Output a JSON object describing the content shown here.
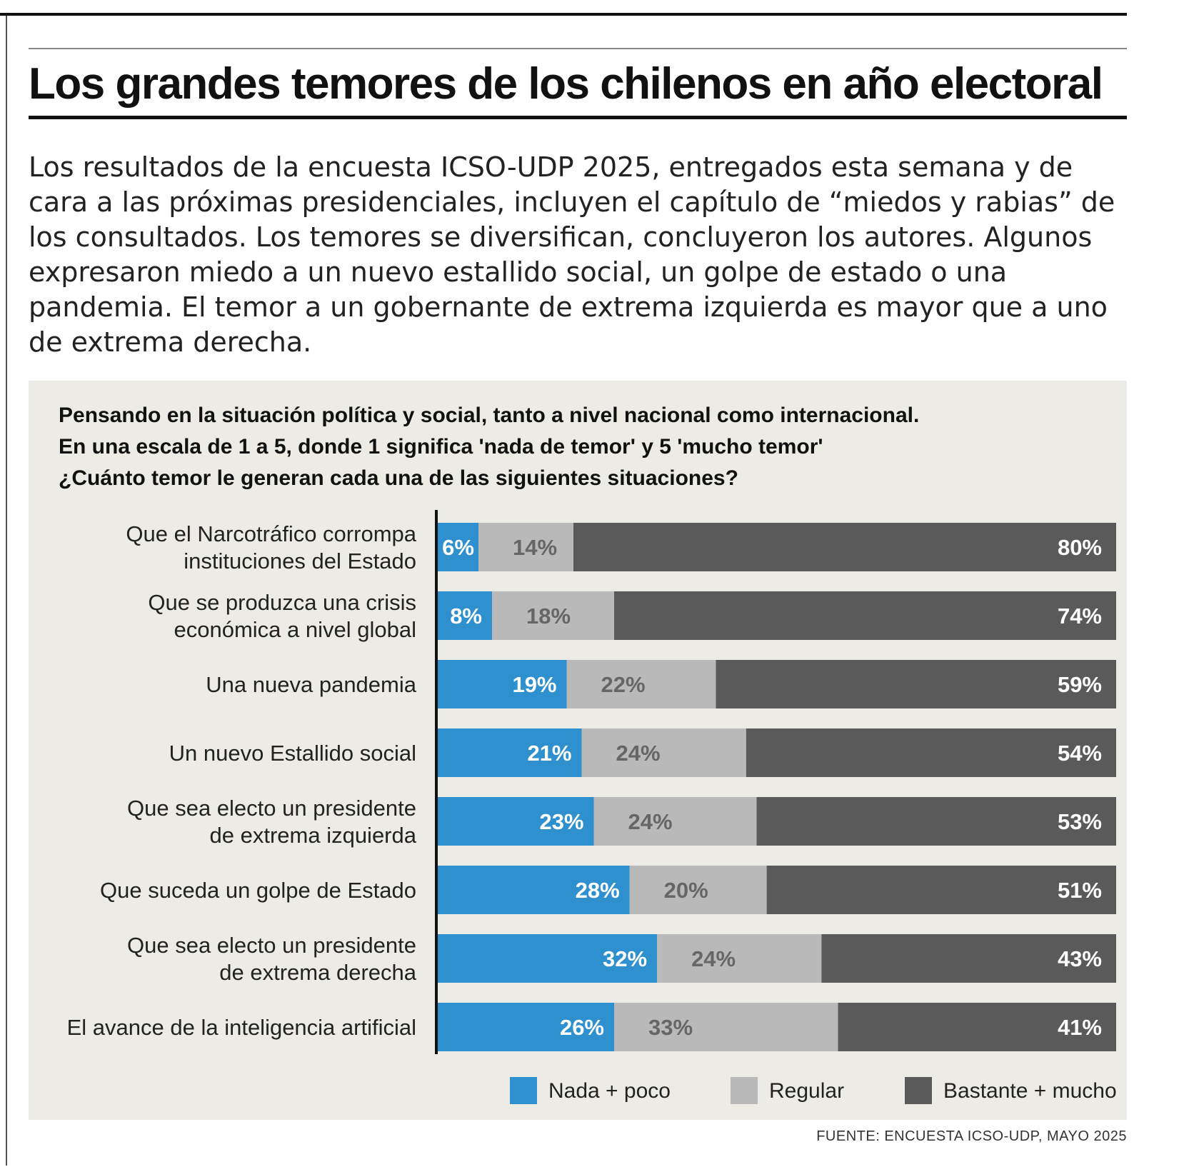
{
  "headline": "Los grandes temores de los chilenos en año electoral",
  "intro": "Los resultados de la encuesta ICSO-UDP 2025, entregados esta semana y de cara a las próximas presidenciales, incluyen el capítulo de “miedos y rabias” de los consultados. Los temores se diversifican, concluyeron los autores. Algunos expresaron miedo a un nuevo estallido social, un golpe de estado o una pandemia. El temor a un gobernante de extrema izquierda es mayor que a uno de extrema derecha.",
  "question_lines": [
    "Pensando en la situación política y social, tanto a nivel nacional como internacional.",
    "En una escala de 1 a 5, donde 1 significa 'nada de temor' y 5 'mucho temor'",
    "¿Cuánto temor le generan cada una de las siguientes situaciones?"
  ],
  "source": "FUENTE: ENCUESTA ICSO-UDP, MAYO 2025",
  "chart_data": {
    "type": "bar",
    "orientation": "horizontal",
    "stacked": true,
    "categories": [
      [
        "Que el Narcotráfico corrompa",
        "instituciones del Estado"
      ],
      [
        "Que se produzca una crisis",
        "económica a nivel global"
      ],
      [
        "Una nueva pandemia"
      ],
      [
        "Un nuevo Estallido social"
      ],
      [
        "Que sea electo un presidente",
        "de extrema izquierda"
      ],
      [
        "Que suceda un golpe de Estado"
      ],
      [
        "Que sea electo un presidente",
        "de extrema derecha"
      ],
      [
        "El avance de la inteligencia artificial"
      ]
    ],
    "series": [
      {
        "name": "Nada + poco",
        "color": "#2e90cf",
        "values": [
          6,
          8,
          19,
          21,
          23,
          28,
          32,
          26
        ]
      },
      {
        "name": "Regular",
        "color": "#b9b9b9",
        "values": [
          14,
          18,
          22,
          24,
          24,
          20,
          24,
          33
        ]
      },
      {
        "name": "Bastante + mucho",
        "color": "#5a5a5a",
        "values": [
          80,
          74,
          59,
          54,
          53,
          51,
          43,
          41
        ]
      }
    ],
    "value_suffix": "%",
    "legend_position": "bottom",
    "grid": false
  }
}
